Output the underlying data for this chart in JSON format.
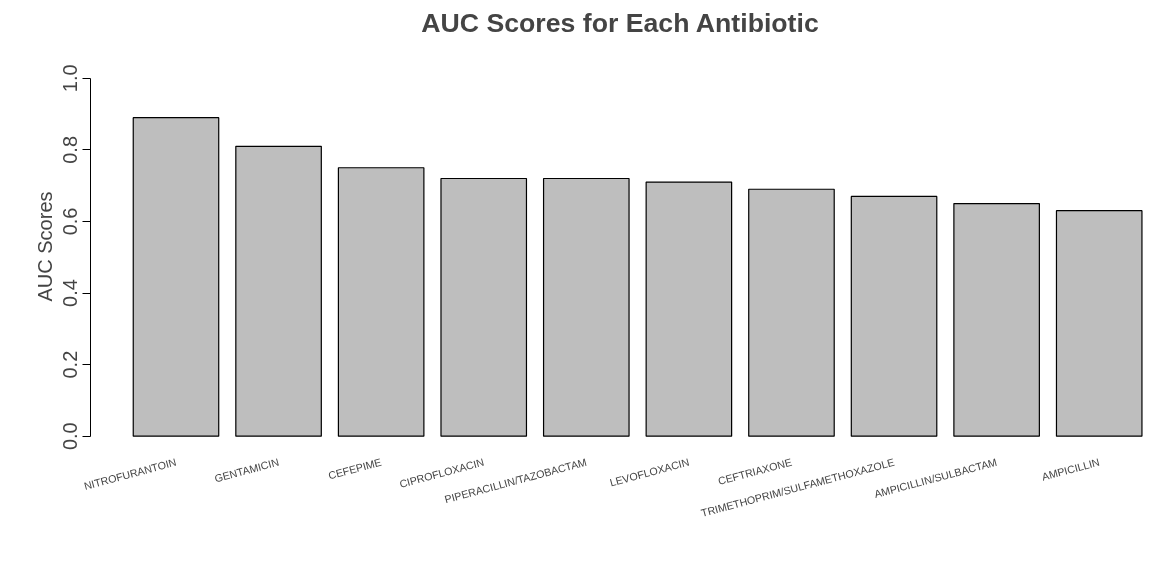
{
  "chart_data": {
    "type": "bar",
    "title": "AUC Scores for Each Antibiotic",
    "ylabel": "AUC Scores",
    "categories": [
      "NITROFURANTOIN",
      "GENTAMICIN",
      "CEFEPIME",
      "CIPROFLOXACIN",
      "PIPERACILLIN/TAZOBACTAM",
      "LEVOFLOXACIN",
      "CEFTRIAXONE",
      "TRIMETHOPRIM/SULFAMETHOXAZOLE",
      "AMPICILLIN/SULBACTAM",
      "AMPICILLIN"
    ],
    "values": [
      0.89,
      0.81,
      0.75,
      0.72,
      0.72,
      0.71,
      0.69,
      0.67,
      0.65,
      0.63
    ],
    "color": "#bebebe",
    "ylim": [
      0,
      1
    ],
    "yticks": [
      {
        "value": 0,
        "label": "0.0"
      },
      {
        "value": 0.2,
        "label": "0.2"
      },
      {
        "value": 0.4,
        "label": "0.4"
      },
      {
        "value": 0.6,
        "label": "0.6"
      },
      {
        "value": 0.8,
        "label": "0.8"
      },
      {
        "value": 1,
        "label": "1.0"
      }
    ],
    "grid": false
  }
}
